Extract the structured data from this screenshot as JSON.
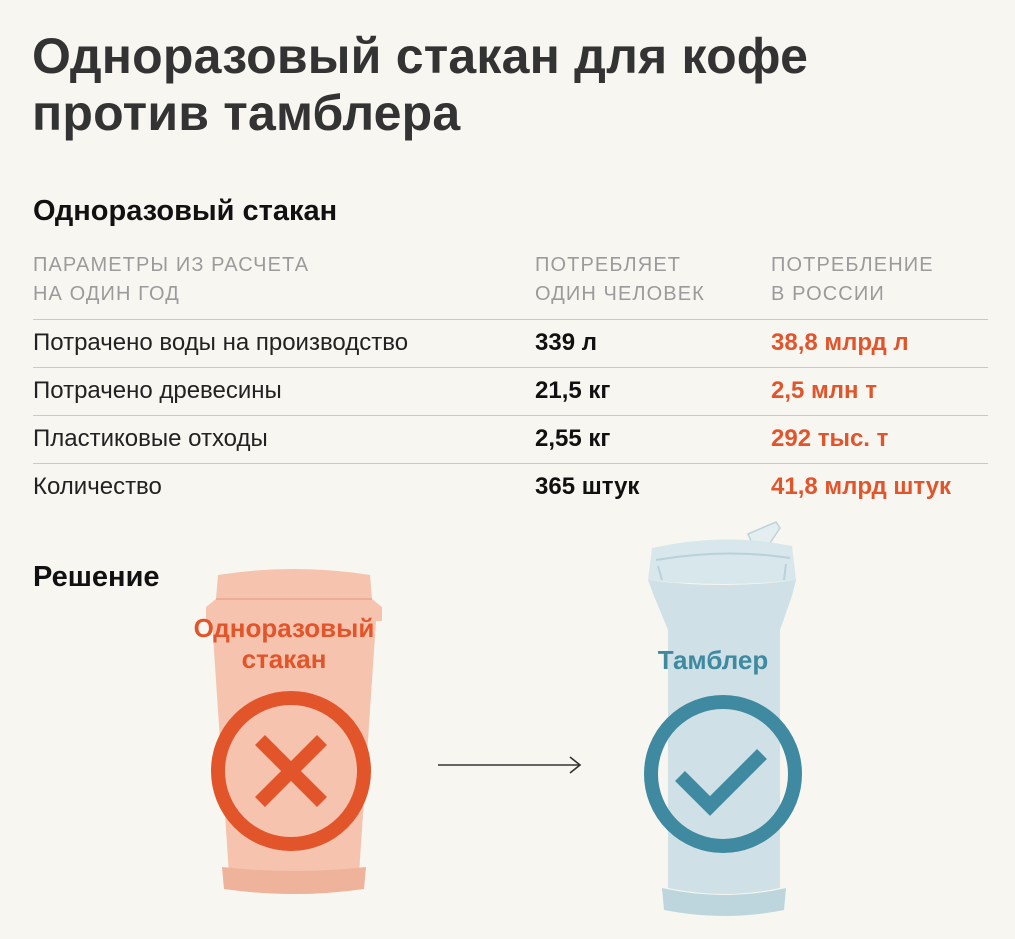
{
  "title": {
    "line1": "Одноразовый стакан для кофе",
    "line2": "против тамблера"
  },
  "section_title": "Одноразовый стакан",
  "columns": {
    "param": [
      "ПАРАМЕТРЫ ИЗ РАСЧЕТА",
      "НА ОДИН ГОД"
    ],
    "person": [
      "ПОТРЕБЛЯЕТ",
      "ОДИН ЧЕЛОВЕК"
    ],
    "russia": [
      "ПОТРЕБЛЕНИЕ",
      "В РОССИИ"
    ]
  },
  "rows": [
    {
      "param": "Потрачено воды на производство",
      "person": "339 л",
      "russia": "38,8 млрд л"
    },
    {
      "param": "Потрачено древесины",
      "person": "21,5 кг",
      "russia": "2,5 млн т"
    },
    {
      "param": "Пластиковые отходы",
      "person": "2,55 кг",
      "russia": "292 тыс. т"
    },
    {
      "param": "Количество",
      "person": "365 штук",
      "russia": "41,8 млрд штук"
    }
  ],
  "solution": {
    "title": "Решение",
    "cup_label": [
      "Одноразовый",
      "стакан"
    ],
    "tumbler_label": "Тамблер"
  },
  "colors": {
    "background": "#f7f6f1",
    "accent_red": "#e2542a",
    "cup_fill": "#f6c3af",
    "tumbler_fill": "#cfe1e6",
    "accent_teal": "#3f8aa0"
  },
  "icons": [
    "cross-icon",
    "check-icon",
    "arrow-right-icon"
  ]
}
